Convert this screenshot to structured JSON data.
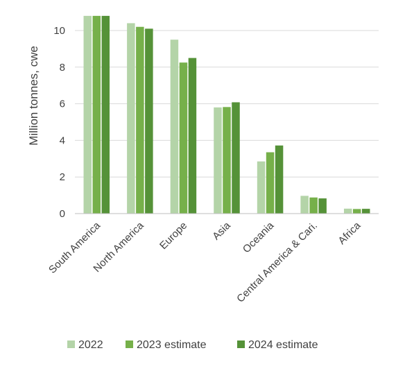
{
  "chart_data": {
    "type": "bar",
    "title": "",
    "xlabel": "",
    "ylabel": "Million tonnes, cwe",
    "ylim": [
      0,
      11
    ],
    "yticks": [
      0,
      2,
      4,
      6,
      8,
      10
    ],
    "grid": "horizontal",
    "legend_position": "bottom",
    "categories": [
      "South America",
      "North America",
      "Europe",
      "Asia",
      "Oceania",
      "Central America & Cari.",
      "Africa"
    ],
    "series": [
      {
        "name": "2022",
        "color": "#b4d4a8",
        "values": [
          10.8,
          10.4,
          9.5,
          5.8,
          2.85,
          0.97,
          0.27
        ]
      },
      {
        "name": "2023 estimate",
        "color": "#76b04a",
        "values": [
          10.8,
          10.2,
          8.25,
          5.82,
          3.35,
          0.88,
          0.25
        ]
      },
      {
        "name": "2024 estimate",
        "color": "#559238",
        "values": [
          10.8,
          10.1,
          8.5,
          6.08,
          3.72,
          0.83,
          0.26
        ]
      }
    ]
  }
}
